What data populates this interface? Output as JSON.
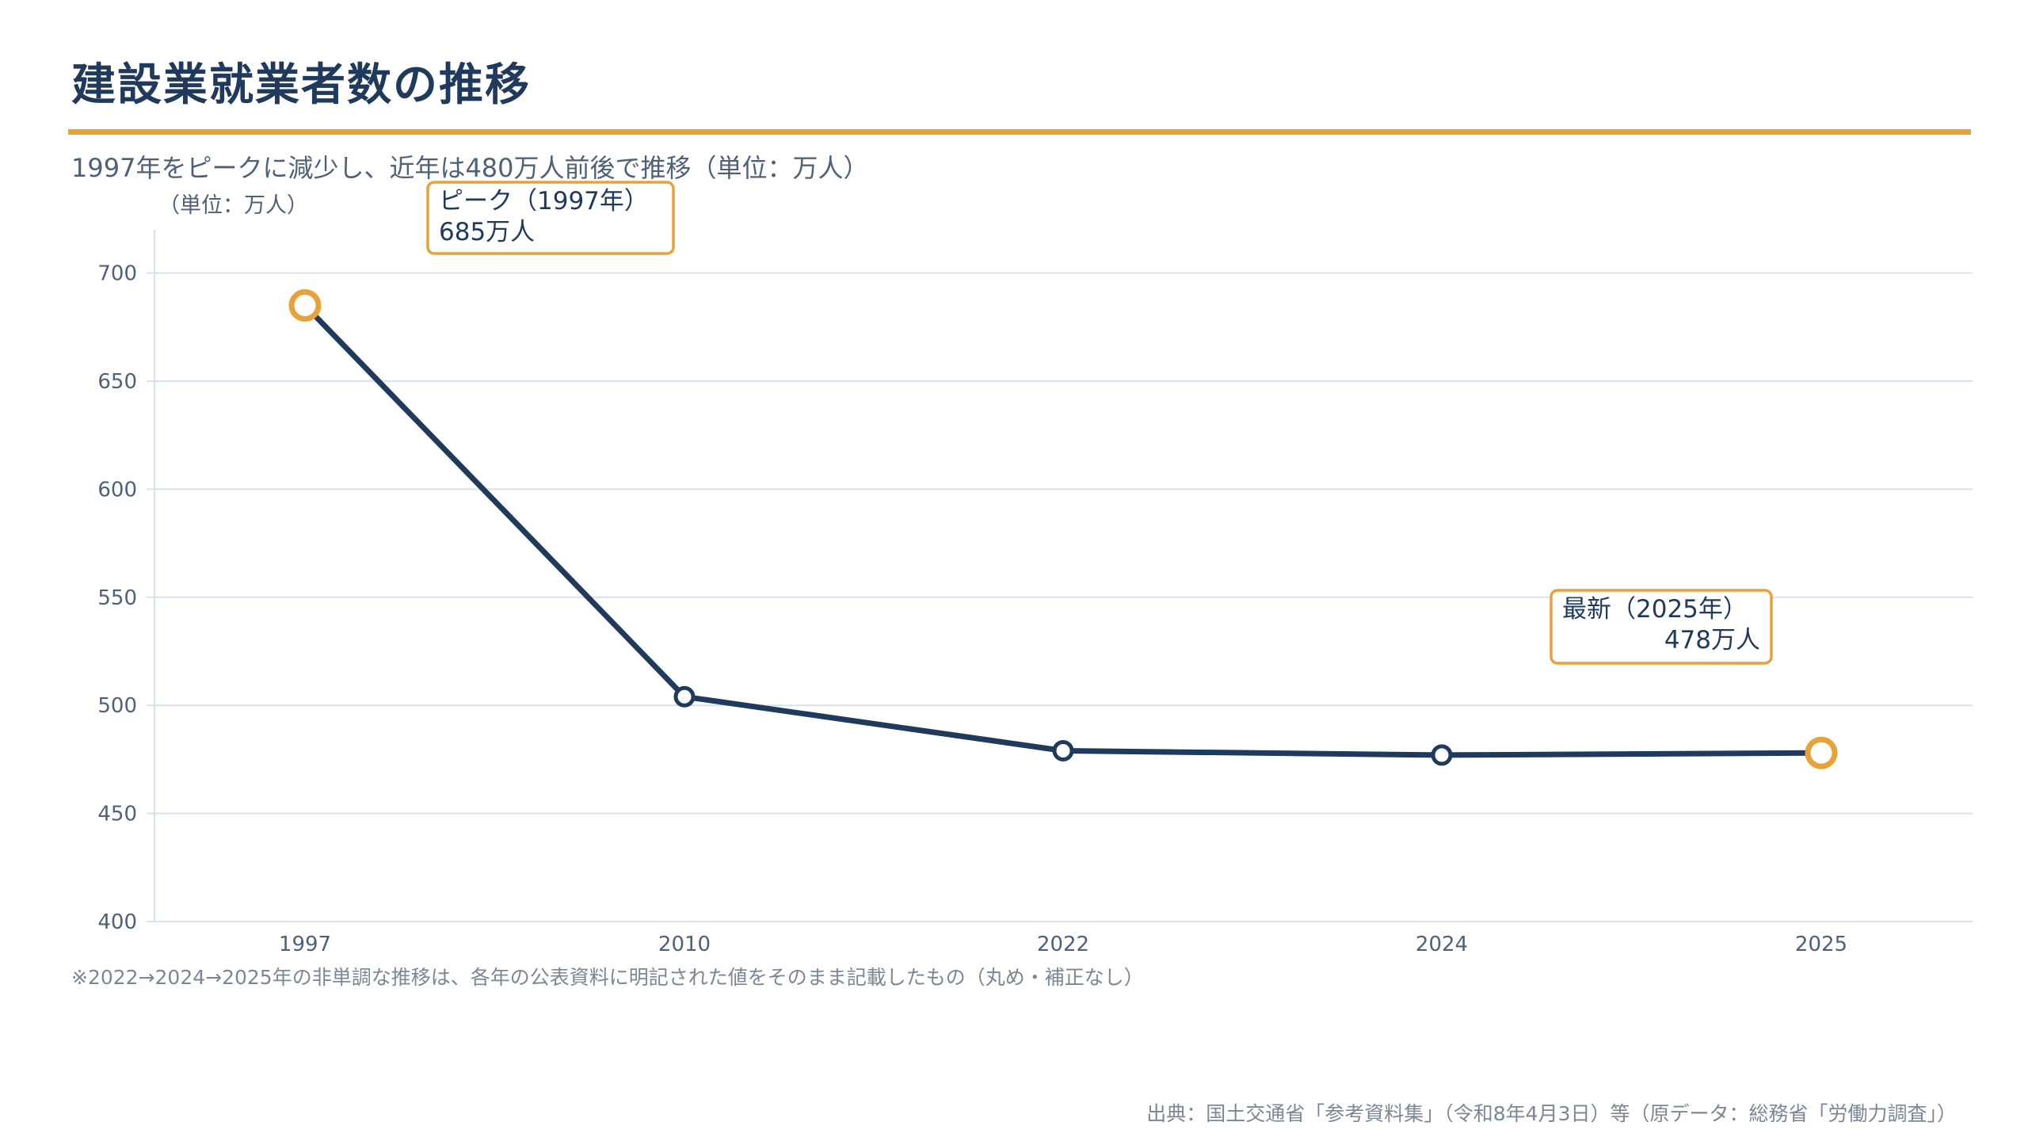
{
  "title": "建設業就業者数の推移",
  "subtitle": "1997年をピークに減少し、近年は480万人前後で推移（単位：万人）",
  "note": "※2022→2024→2025年の非単調な推移は、各年の公表資料に明記された値をそのまま記載したもの（丸め・補正なし）",
  "source": "出典：国土交通省「参考資料集」（令和8年4月3日）等（原データ：総務省「労働力調査」）",
  "colors": {
    "line": "#1f3a5c",
    "accent": "#e8a23a",
    "grid": "#d6e2ee"
  },
  "chart_data": {
    "type": "line",
    "unit_label": "（単位：万人）",
    "categories": [
      "1997",
      "2010",
      "2022",
      "2024",
      "2025"
    ],
    "values": [
      685,
      504,
      479,
      477,
      478
    ],
    "ylim": [
      400,
      720
    ],
    "yticks": [
      400,
      450,
      500,
      550,
      600,
      650,
      700
    ],
    "grid": true,
    "highlighted_points": [
      0,
      4
    ],
    "callouts": [
      {
        "line1": "ピーク（1997年）",
        "line2": "685万人"
      },
      {
        "line1": "最新（2025年）",
        "line2": "478万人"
      }
    ]
  }
}
